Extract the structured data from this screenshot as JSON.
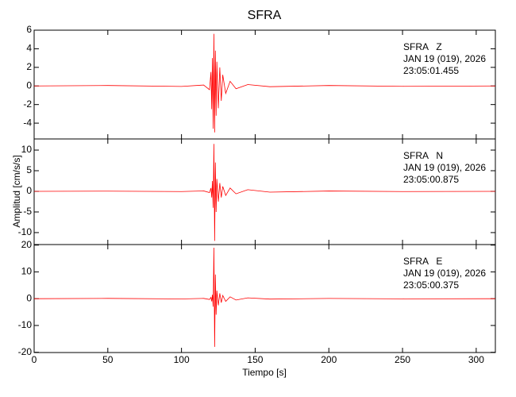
{
  "chart_data": [
    {
      "type": "line",
      "title": "SFRA",
      "annotations": [
        "SFRA   Z",
        "JAN 19 (019), 2026",
        "23:05:01.455"
      ],
      "x": [
        0,
        50,
        100,
        115,
        119,
        120,
        120.5,
        121,
        121.5,
        122,
        122.5,
        123,
        123.5,
        124,
        125,
        126,
        127,
        128,
        130,
        133,
        137,
        145,
        160,
        200,
        250,
        313
      ],
      "values": [
        0,
        0.05,
        -0.05,
        0.1,
        -0.4,
        1.5,
        -2.5,
        3.0,
        -4.6,
        5.6,
        -5.0,
        3.8,
        -3.2,
        2.6,
        -2.4,
        2.0,
        -1.6,
        1.2,
        -0.8,
        0.5,
        -0.3,
        0.15,
        -0.08,
        0.05,
        -0.04,
        0
      ],
      "color": "#ff0000",
      "xlim": [
        0,
        313
      ],
      "xticks": [
        0,
        50,
        100,
        150,
        200,
        250,
        300
      ],
      "ylim": [
        -5.7,
        6
      ],
      "yticks": [
        -4,
        -2,
        0,
        2,
        4,
        6
      ]
    },
    {
      "type": "line",
      "y_label": "Amplitud [cm/s/s]",
      "annotations": [
        "SFRA   N",
        "JAN 19 (019), 2026",
        "23:05:00.875"
      ],
      "x": [
        0,
        50,
        100,
        115,
        119,
        120,
        120.5,
        121,
        121.5,
        122,
        122.5,
        123,
        123.5,
        124,
        125,
        126,
        127,
        128,
        130,
        133,
        137,
        145,
        160,
        200,
        250,
        313
      ],
      "values": [
        0,
        0.05,
        -0.05,
        0.1,
        -0.3,
        0.8,
        -1.5,
        2.5,
        -4,
        11.5,
        -12,
        7,
        -5,
        3,
        -2.5,
        2,
        -1.5,
        1.2,
        -1,
        0.8,
        -0.6,
        0.4,
        -0.2,
        0.08,
        -0.05,
        0
      ],
      "color": "#ff0000",
      "xlim": [
        0,
        313
      ],
      "xticks": [
        0,
        50,
        100,
        150,
        200,
        250,
        300
      ],
      "ylim": [
        -12.9,
        12.7
      ],
      "yticks": [
        -10,
        -5,
        0,
        5,
        10
      ]
    },
    {
      "type": "line",
      "x_label": "Tiempo [s]",
      "annotations": [
        "SFRA   E",
        "JAN 19 (019), 2026",
        "23:05:00.375"
      ],
      "x": [
        0,
        50,
        100,
        115,
        119,
        120,
        120.5,
        121,
        121.5,
        122,
        122.5,
        123,
        123.5,
        124,
        125,
        126,
        127,
        128,
        130,
        133,
        137,
        145,
        160,
        200,
        250,
        313
      ],
      "values": [
        0,
        0.1,
        -0.1,
        0.1,
        -0.3,
        0.5,
        -1,
        1.5,
        -3,
        19,
        -18,
        9,
        -6,
        3,
        -2.5,
        2,
        -1.5,
        1.2,
        -1,
        0.7,
        -0.5,
        0.3,
        -0.15,
        0.08,
        -0.05,
        0
      ],
      "color": "#ff0000",
      "xlim": [
        0,
        313
      ],
      "xticks": [
        0,
        50,
        100,
        150,
        200,
        250,
        300
      ],
      "ylim": [
        -20.1,
        20.2
      ],
      "yticks": [
        -20,
        -10,
        0,
        10,
        20
      ]
    }
  ]
}
